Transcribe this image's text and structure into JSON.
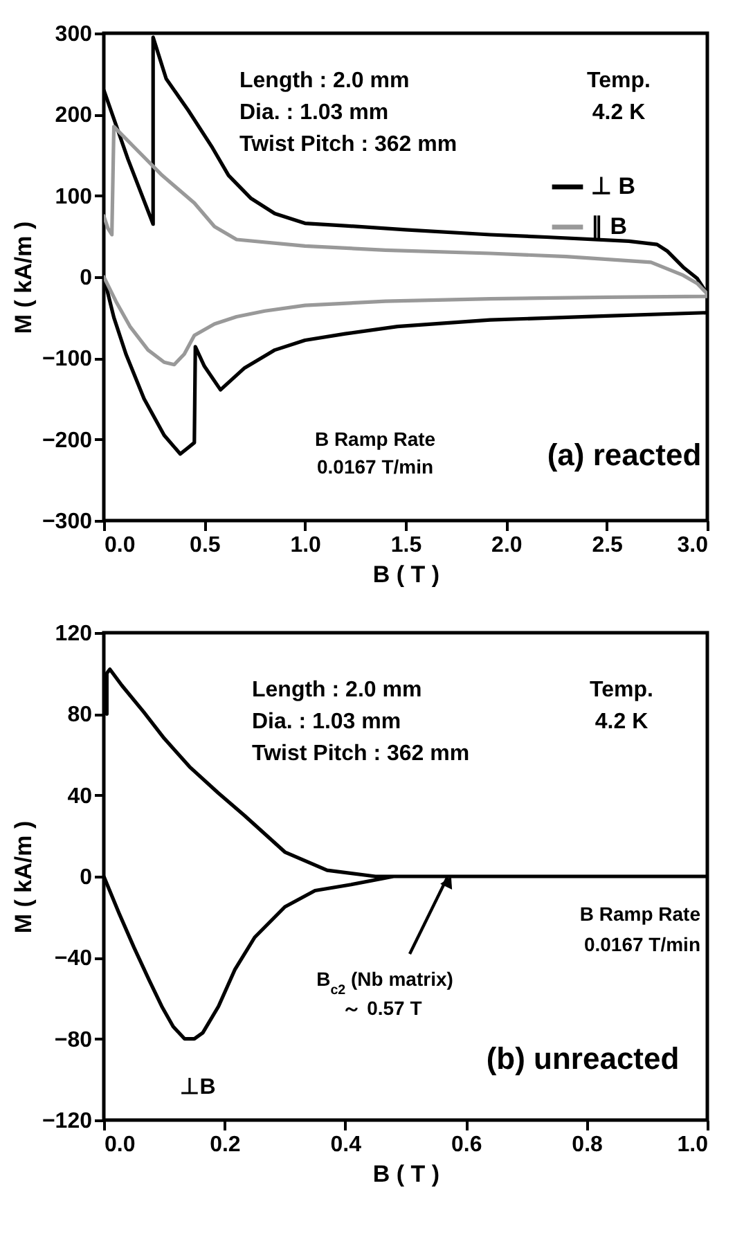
{
  "chart_data": [
    {
      "type": "line",
      "xlabel": "B ( T )",
      "ylabel": "M ( kA/m )",
      "xlim": [
        0,
        3
      ],
      "xticks": [
        {
          "value": 0,
          "label": "0.0"
        },
        {
          "value": 0.5,
          "label": "0.5"
        },
        {
          "value": 1,
          "label": "1.0"
        },
        {
          "value": 1.5,
          "label": "1.5"
        },
        {
          "value": 2,
          "label": "2.0"
        },
        {
          "value": 2.5,
          "label": "2.5"
        },
        {
          "value": 3,
          "label": "3.0"
        }
      ],
      "ylim": [
        -300,
        300
      ],
      "yticks": [
        -300,
        -200,
        -100,
        0,
        100,
        200,
        300
      ],
      "legend": "top right",
      "grid": false,
      "series": [
        {
          "name": "⊥ B",
          "color": "#000000",
          "x": [
            0,
            0.05,
            0.11,
            0.2,
            0.3,
            0.38,
            0.42,
            0.45,
            0.455,
            0.5,
            0.58,
            0.7,
            0.85,
            1.0,
            1.2,
            1.46,
            1.92,
            2.5,
            3.0,
            3.0,
            2.95,
            2.88,
            2.8,
            2.75,
            2.61,
            2.2,
            1.92,
            1.5,
            1.2,
            1.0,
            0.85,
            0.73,
            0.62,
            0.54,
            0.42,
            0.31,
            0.245,
            0.245,
            0.12,
            0
          ],
          "values": [
            0,
            -50,
            -95,
            -150,
            -195,
            -218,
            -210,
            -204,
            -86,
            -110,
            -139,
            -112,
            -90,
            -78,
            -70,
            -61,
            -53,
            -48,
            -44,
            -21,
            -2,
            12,
            32,
            40,
            44,
            49,
            52,
            58,
            63,
            66,
            78,
            97,
            125,
            159,
            205,
            244,
            295,
            65,
            145,
            230
          ]
        },
        {
          "name": "∥ B",
          "color": "#999999",
          "x": [
            0,
            0.06,
            0.13,
            0.22,
            0.3,
            0.35,
            0.4,
            0.45,
            0.55,
            0.66,
            0.8,
            1.0,
            1.4,
            1.92,
            2.5,
            3.0,
            3.0,
            2.95,
            2.88,
            2.72,
            2.3,
            1.92,
            1.4,
            1.0,
            0.66,
            0.55,
            0.45,
            0.29,
            0.15,
            0.05,
            0.04,
            0.02,
            0
          ],
          "values": [
            0,
            -30,
            -61,
            -90,
            -105,
            -108,
            -95,
            -72,
            -58,
            -49,
            -42,
            -35,
            -30,
            -27,
            -25,
            -24,
            -21,
            -8,
            2,
            18,
            25,
            29,
            33,
            38,
            46,
            62,
            91,
            125,
            160,
            185,
            52,
            60,
            75
          ]
        }
      ],
      "annotations": [
        "Length : 2.0 mm",
        "Dia. : 1.03 mm",
        "Twist Pitch : 362 mm",
        "Temp.",
        "4.2 K",
        "B Ramp Rate",
        "0.0167 T/min",
        "(a) reacted"
      ]
    },
    {
      "type": "line",
      "xlabel": "B ( T )",
      "ylabel": "M ( kA/m )",
      "xlim": [
        0,
        1
      ],
      "xticks": [
        {
          "value": 0,
          "label": "0.0"
        },
        {
          "value": 0.2,
          "label": "0.2"
        },
        {
          "value": 0.4,
          "label": "0.4"
        },
        {
          "value": 0.6,
          "label": "0.6"
        },
        {
          "value": 0.8,
          "label": "0.8"
        },
        {
          "value": 1,
          "label": "1.0"
        }
      ],
      "ylim": [
        -120,
        120
      ],
      "yticks": [
        -120,
        -80,
        -40,
        0,
        40,
        80,
        120
      ],
      "legend": false,
      "grid": false,
      "series": [
        {
          "name": "⊥B",
          "color": "#000000",
          "x": [
            0,
            0.025,
            0.05,
            0.075,
            0.096,
            0.115,
            0.134,
            0.15,
            0.164,
            0.19,
            0.217,
            0.25,
            0.3,
            0.35,
            0.41,
            0.48,
            0.6,
            0.8,
            1.0,
            1.0,
            0.8,
            0.6,
            0.45,
            0.37,
            0.3,
            0.233,
            0.19,
            0.142,
            0.1,
            0.066,
            0.03,
            0.01,
            0.005,
            0.005
          ],
          "values": [
            0,
            -18,
            -35,
            -51,
            -64,
            -74,
            -80,
            -80,
            -77,
            -64,
            -46,
            -30,
            -15,
            -7,
            -4,
            0,
            0,
            0,
            0,
            0,
            0,
            0,
            0,
            3,
            12,
            30,
            41,
            54,
            68,
            81,
            94,
            102,
            100,
            80
          ]
        }
      ],
      "annotations": [
        "Length : 2.0 mm",
        "Dia. : 1.03 mm",
        "Twist Pitch : 362 mm",
        "Temp.",
        "4.2 K",
        "B Ramp Rate",
        "0.0167 T/min",
        {
          "text": "B$_{c2}$ (Nb matrix)",
          "x": 0.57,
          "y": 0
        },
        "～ 0.57 T",
        "(b) unreacted"
      ]
    }
  ]
}
